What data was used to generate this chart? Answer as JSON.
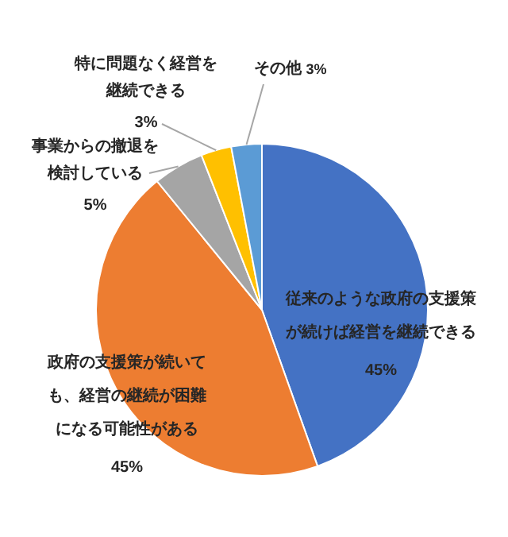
{
  "chart_data": {
    "type": "pie",
    "categories": [
      "従来のような政府の支援策が続けば経営を継続できる",
      "政府の支援策が続いても、経営の継続が困難になる可能性がある",
      "事業からの撤退を検討している",
      "特に問題なく経営を継続できる",
      "その他"
    ],
    "values": [
      45,
      45,
      5,
      3,
      3
    ],
    "value_labels": [
      "45%",
      "45%",
      "5%",
      "3%",
      "3%"
    ],
    "colors": [
      "#4472c4",
      "#ed7d31",
      "#a5a5a5",
      "#ffc000",
      "#5b9bd5"
    ],
    "legend": false
  }
}
